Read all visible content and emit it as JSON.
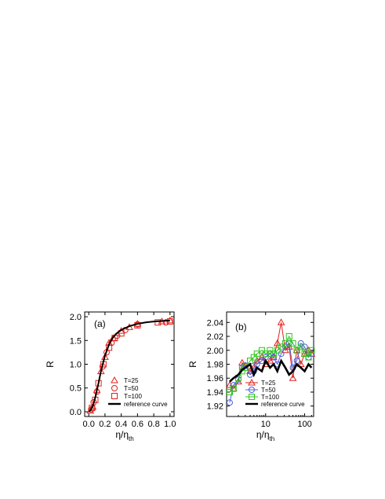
{
  "chart_data": [
    {
      "type": "scatter",
      "panel_label": "(a)",
      "xlabel": "η/η",
      "xlabel_sub": "th",
      "ylabel": "R",
      "xlim": [
        -0.05,
        1.05
      ],
      "ylim": [
        -0.1,
        2.1
      ],
      "x_ticks": [
        "0.0",
        "0.2",
        "0.4",
        "0.6",
        "0.8",
        "1.0"
      ],
      "x_tick_values": [
        0.0,
        0.2,
        0.4,
        0.6,
        0.8,
        1.0
      ],
      "y_ticks": [
        "0.0",
        "0.5",
        "1.0",
        "1.5",
        "2.0"
      ],
      "y_tick_values": [
        0.0,
        0.5,
        1.0,
        1.5,
        2.0
      ],
      "legend_position": "bottom-right",
      "series": [
        {
          "name": "T=25",
          "marker": "triangle",
          "color": "#e0201b",
          "x": [
            0.02,
            0.05,
            0.1,
            0.15,
            0.2,
            0.25,
            0.3,
            0.4,
            0.5,
            0.6,
            0.9,
            1.0
          ],
          "y": [
            0.02,
            0.1,
            0.45,
            0.85,
            1.15,
            1.45,
            1.55,
            1.7,
            1.78,
            1.85,
            1.9,
            1.92
          ]
        },
        {
          "name": "T=50",
          "marker": "circle",
          "color": "#e0201b",
          "x": [
            0.03,
            0.06,
            0.1,
            0.17,
            0.22,
            0.28,
            0.35,
            0.45,
            0.6,
            0.95
          ],
          "y": [
            0.05,
            0.2,
            0.42,
            0.95,
            1.25,
            1.45,
            1.6,
            1.72,
            1.84,
            1.88
          ]
        },
        {
          "name": "T=100",
          "marker": "square",
          "color": "#e0201b",
          "x": [
            0.04,
            0.08,
            0.12,
            0.18,
            0.25,
            0.32,
            0.4,
            0.6,
            0.85,
            1.0
          ],
          "y": [
            0.08,
            0.25,
            0.6,
            1.0,
            1.35,
            1.55,
            1.65,
            1.82,
            1.88,
            1.9
          ]
        },
        {
          "name": "reference curve",
          "marker": "line",
          "color": "#000000",
          "x": [
            0.0,
            0.02,
            0.05,
            0.08,
            0.1,
            0.12,
            0.15,
            0.18,
            0.2,
            0.25,
            0.3,
            0.35,
            0.4,
            0.5,
            0.6,
            0.7,
            0.8,
            0.9,
            1.0
          ],
          "y": [
            0.0,
            0.03,
            0.12,
            0.3,
            0.45,
            0.6,
            0.85,
            1.05,
            1.18,
            1.42,
            1.57,
            1.66,
            1.72,
            1.8,
            1.85,
            1.88,
            1.9,
            1.91,
            1.92
          ]
        }
      ]
    },
    {
      "type": "line",
      "panel_label": "(b)",
      "xlabel": "η/η",
      "xlabel_sub": "th",
      "ylabel": "R",
      "xscale": "log",
      "xlim": [
        1.0,
        170
      ],
      "ylim": [
        1.905,
        2.055
      ],
      "x_ticks": [
        "10",
        "100"
      ],
      "x_tick_values": [
        10,
        100
      ],
      "y_ticks": [
        "1.92",
        "1.94",
        "1.96",
        "1.98",
        "2.00",
        "2.02",
        "2.04"
      ],
      "y_tick_values": [
        1.92,
        1.94,
        1.96,
        1.98,
        2.0,
        2.02,
        2.04
      ],
      "legend_position": "bottom-center",
      "series": [
        {
          "name": "T=25",
          "marker": "triangle",
          "color": "#e0201b",
          "x": [
            1.2,
            1.5,
            2,
            2.5,
            3,
            4,
            5,
            6,
            8,
            10,
            13,
            16,
            20,
            25,
            32,
            40,
            50,
            63,
            80,
            100,
            126,
            150
          ],
          "y": [
            1.95,
            1.945,
            1.955,
            1.982,
            1.978,
            1.97,
            1.975,
            1.985,
            1.99,
            1.98,
            1.985,
            1.99,
            2.01,
            2.04,
            2.0,
            2.005,
            1.96,
            2.0,
            1.98,
            1.995,
            2.0,
            1.995
          ]
        },
        {
          "name": "T=50",
          "marker": "circle",
          "color": "#4d5fd6",
          "x": [
            1.2,
            1.5,
            2,
            2.5,
            3,
            4,
            5,
            6,
            8,
            10,
            13,
            16,
            20,
            25,
            32,
            40,
            50,
            63,
            80,
            100,
            126,
            150
          ],
          "y": [
            1.925,
            1.95,
            1.958,
            1.975,
            1.978,
            1.965,
            1.97,
            1.98,
            1.985,
            1.99,
            1.995,
            1.99,
            1.98,
            1.995,
            2.005,
            2.01,
            1.975,
            1.985,
            2.01,
            2.005,
            1.99,
            1.995
          ]
        },
        {
          "name": "T=100",
          "marker": "square",
          "color": "#2ac81a",
          "x": [
            1.2,
            1.5,
            2,
            2.5,
            3,
            4,
            5,
            6,
            8,
            10,
            13,
            16,
            20,
            25,
            32,
            40,
            50,
            63,
            80,
            100,
            126,
            150
          ],
          "y": [
            1.94,
            1.945,
            1.96,
            1.97,
            1.975,
            1.985,
            1.99,
            1.995,
            2.0,
            1.995,
            2.0,
            1.995,
            2.0,
            2.005,
            2.01,
            2.02,
            2.01,
            2.0,
            2.005,
            1.995,
            1.99,
            2.0
          ]
        },
        {
          "name": "reference curve",
          "marker": "line",
          "color": "#000000",
          "x": [
            1.2,
            1.5,
            2,
            2.5,
            3,
            4,
            5,
            6,
            8,
            10,
            13,
            16,
            20,
            25,
            32,
            40,
            50,
            63,
            80,
            100,
            126,
            150
          ],
          "y": [
            1.955,
            1.96,
            1.965,
            1.972,
            1.975,
            1.98,
            1.965,
            1.975,
            1.97,
            1.985,
            1.975,
            1.98,
            1.97,
            1.985,
            1.975,
            1.965,
            1.97,
            1.98,
            1.975,
            1.97,
            1.98,
            1.975
          ]
        }
      ]
    }
  ]
}
